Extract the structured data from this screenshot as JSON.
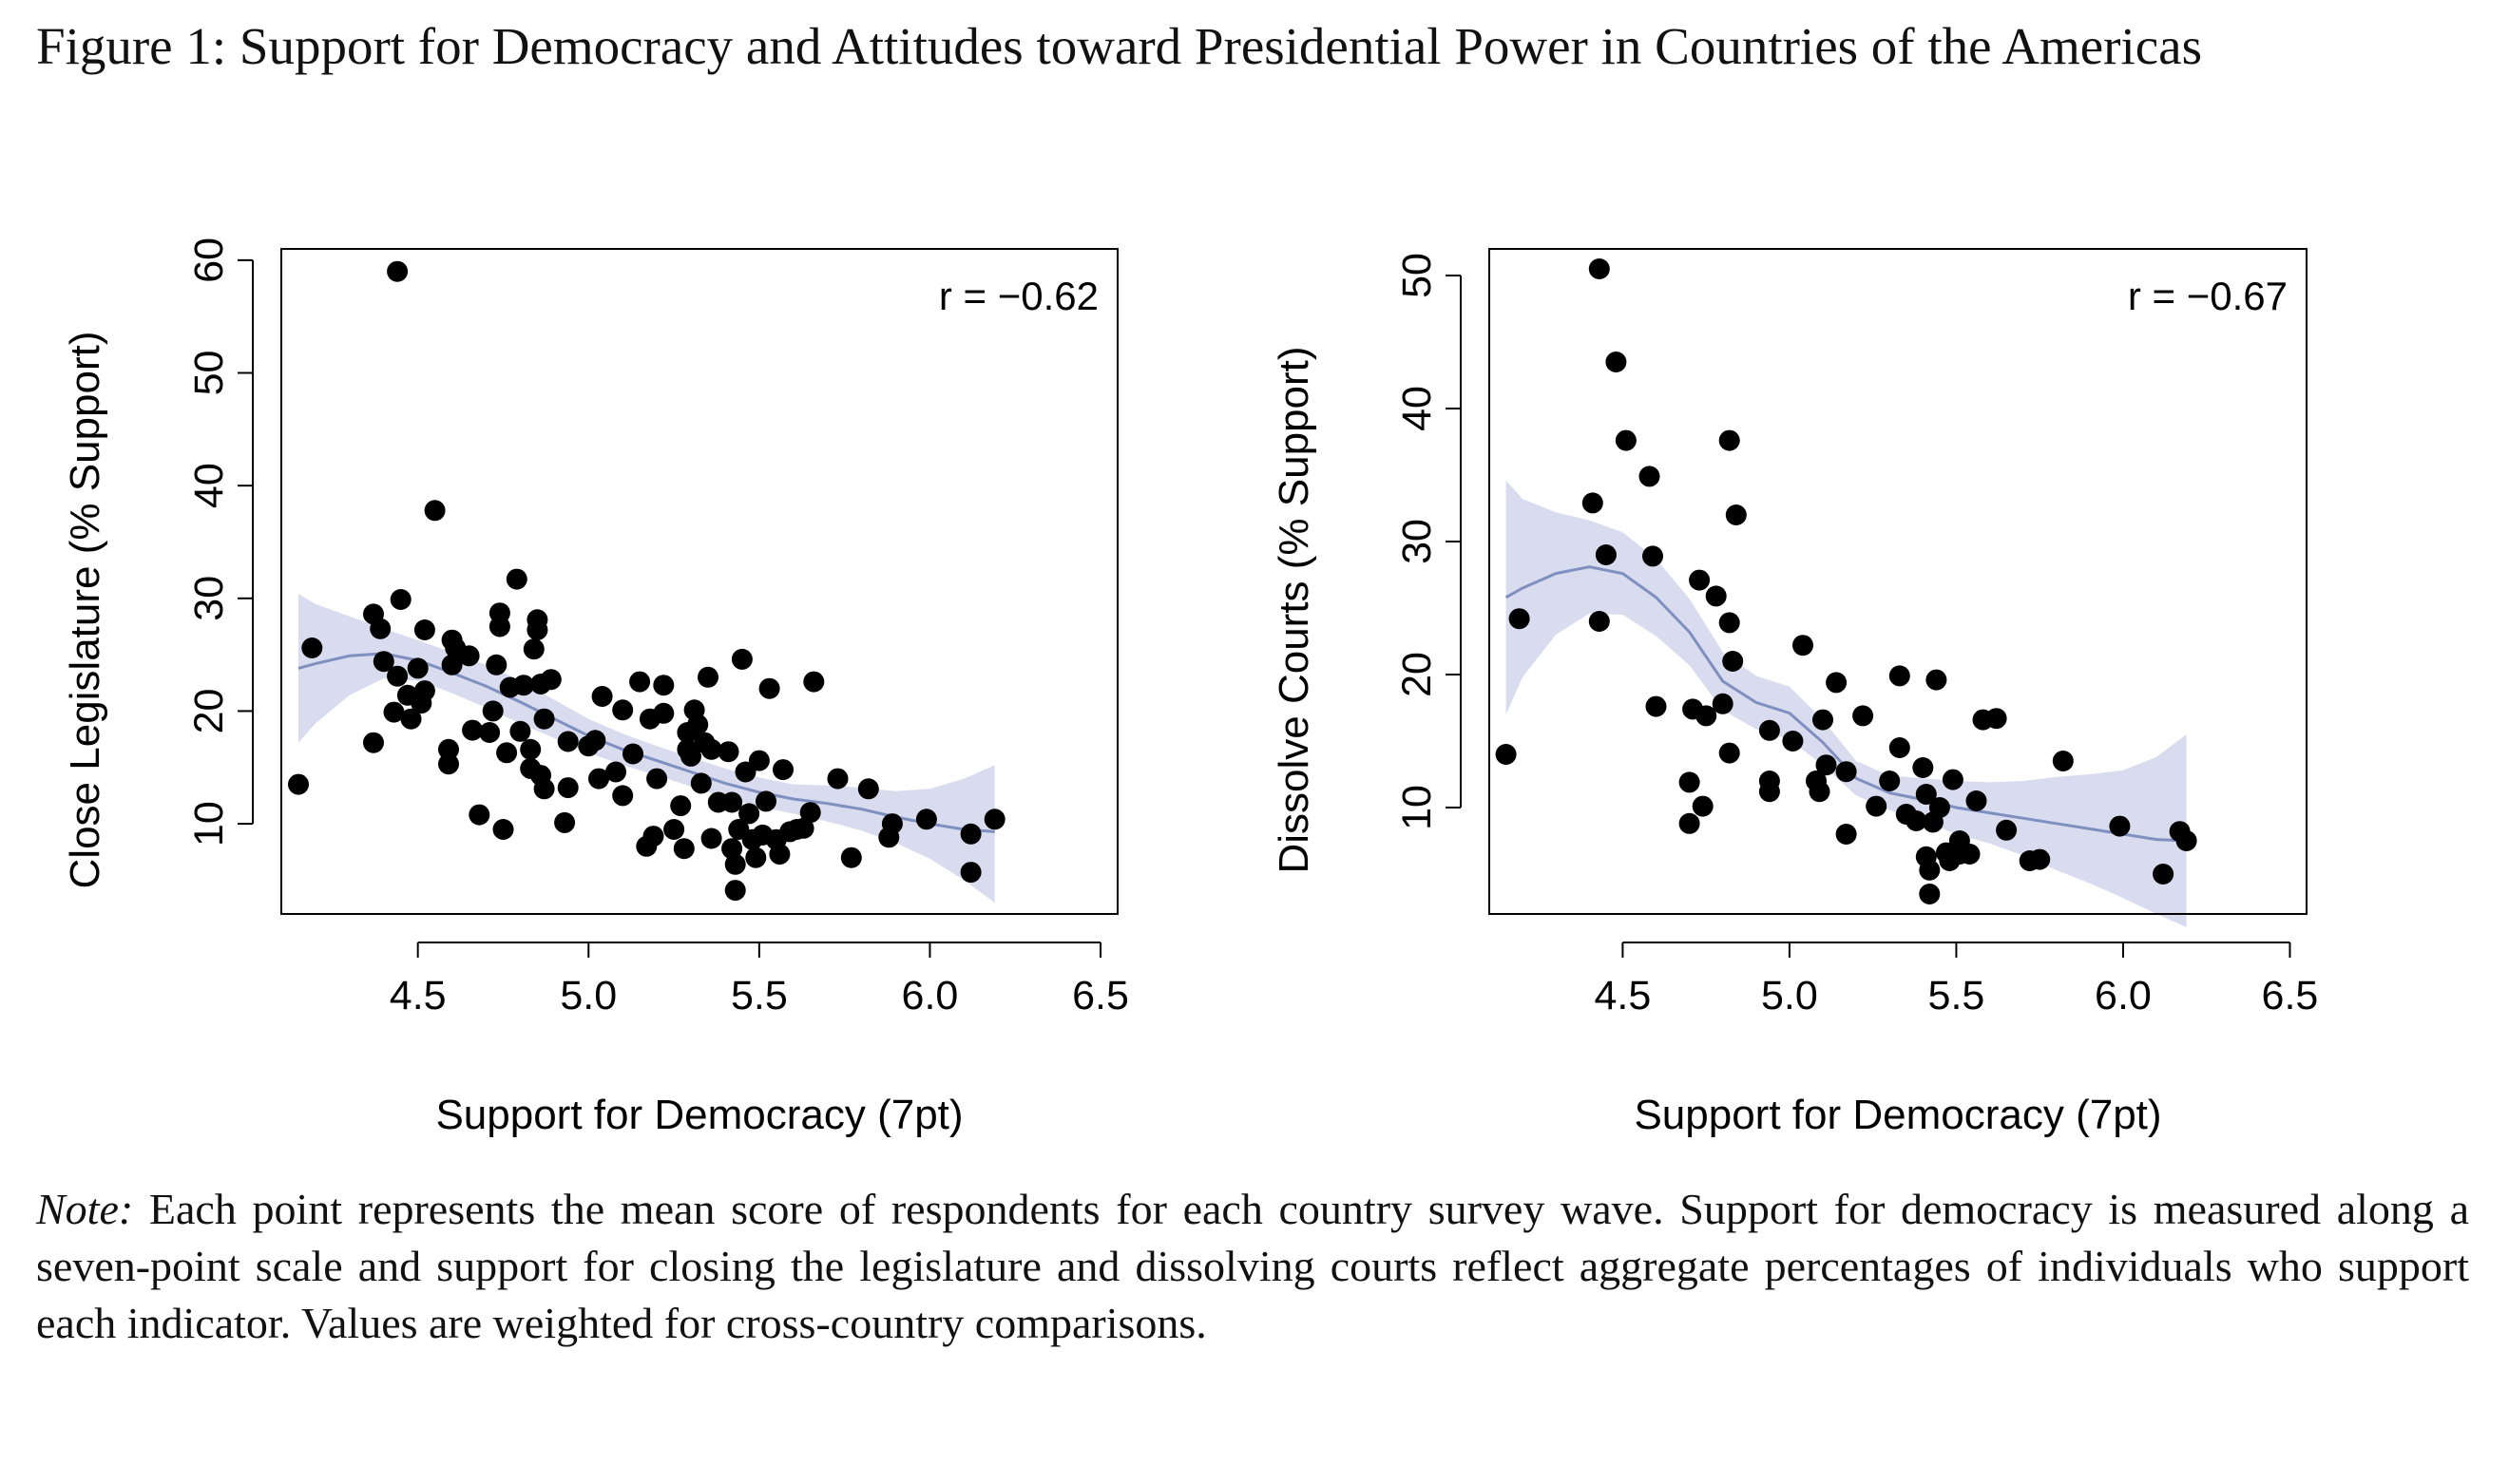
{
  "figure": {
    "title": "Figure 1: Support for Democracy and Attitudes toward Presidential Power in Countries of the Americas",
    "note_label": "Note:",
    "note_text": "Each point represents the mean score of respondents for each country survey wave. Support for democracy is measured along a seven-point scale and support for closing the legislature and dissolving courts reflect aggregate percentages of individuals who support each indicator. Values are weighted for cross-country comparisons."
  },
  "colors": {
    "points": "#000000",
    "smoother_line": "#7f8fc0",
    "confidence_band": "#d9dcee"
  },
  "chart_data": [
    {
      "type": "scatter",
      "xlabel": "Support for Democracy (7pt)",
      "ylabel": "Close Legislature (% Support)",
      "annotation": "r = −0.62",
      "xlim": [
        4.1,
        6.55
      ],
      "ylim": [
        2,
        61
      ],
      "xticks": [
        4.5,
        5.0,
        5.5,
        6.0,
        6.5
      ],
      "xtick_labels": [
        "4.5",
        "5.0",
        "5.5",
        "6.0",
        "6.5"
      ],
      "yticks": [
        10,
        20,
        30,
        40,
        50,
        60
      ],
      "ytick_labels": [
        "10",
        "20",
        "30",
        "40",
        "50",
        "60"
      ],
      "points": [
        [
          4.15,
          13.5
        ],
        [
          4.19,
          25.6
        ],
        [
          4.37,
          28.6
        ],
        [
          4.37,
          17.2
        ],
        [
          4.39,
          27.3
        ],
        [
          4.4,
          24.4
        ],
        [
          4.43,
          19.9
        ],
        [
          4.44,
          23.1
        ],
        [
          4.45,
          29.9
        ],
        [
          4.44,
          59.0
        ],
        [
          4.47,
          21.4
        ],
        [
          4.48,
          19.3
        ],
        [
          4.5,
          23.8
        ],
        [
          4.51,
          20.7
        ],
        [
          4.52,
          21.8
        ],
        [
          4.52,
          27.2
        ],
        [
          4.55,
          37.8
        ],
        [
          4.59,
          15.3
        ],
        [
          4.59,
          16.6
        ],
        [
          4.6,
          24.1
        ],
        [
          4.6,
          26.3
        ],
        [
          4.61,
          25.6
        ],
        [
          4.65,
          24.9
        ],
        [
          4.66,
          18.3
        ],
        [
          4.68,
          10.8
        ],
        [
          4.71,
          18.1
        ],
        [
          4.72,
          20.0
        ],
        [
          4.73,
          24.1
        ],
        [
          4.74,
          27.5
        ],
        [
          4.74,
          28.7
        ],
        [
          4.75,
          9.5
        ],
        [
          4.76,
          16.3
        ],
        [
          4.77,
          22.1
        ],
        [
          4.79,
          31.7
        ],
        [
          4.8,
          18.2
        ],
        [
          4.81,
          22.3
        ],
        [
          4.83,
          16.6
        ],
        [
          4.83,
          14.9
        ],
        [
          4.84,
          25.5
        ],
        [
          4.85,
          28.1
        ],
        [
          4.85,
          27.2
        ],
        [
          4.86,
          14.3
        ],
        [
          4.86,
          22.4
        ],
        [
          4.87,
          13.1
        ],
        [
          4.87,
          19.3
        ],
        [
          4.89,
          22.8
        ],
        [
          4.93,
          10.1
        ],
        [
          4.94,
          13.2
        ],
        [
          4.94,
          17.3
        ],
        [
          5.0,
          16.9
        ],
        [
          5.02,
          17.4
        ],
        [
          5.03,
          14.0
        ],
        [
          5.04,
          21.3
        ],
        [
          5.08,
          14.6
        ],
        [
          5.1,
          12.5
        ],
        [
          5.1,
          20.1
        ],
        [
          5.13,
          16.2
        ],
        [
          5.15,
          22.6
        ],
        [
          5.17,
          8.0
        ],
        [
          5.18,
          19.3
        ],
        [
          5.19,
          8.9
        ],
        [
          5.2,
          14.0
        ],
        [
          5.22,
          19.8
        ],
        [
          5.22,
          22.3
        ],
        [
          5.25,
          9.5
        ],
        [
          5.27,
          11.6
        ],
        [
          5.28,
          7.8
        ],
        [
          5.29,
          16.6
        ],
        [
          5.29,
          18.1
        ],
        [
          5.3,
          16.0
        ],
        [
          5.31,
          20.1
        ],
        [
          5.32,
          18.8
        ],
        [
          5.33,
          13.6
        ],
        [
          5.34,
          17.2
        ],
        [
          5.35,
          23.0
        ],
        [
          5.36,
          16.6
        ],
        [
          5.36,
          8.7
        ],
        [
          5.38,
          11.9
        ],
        [
          5.41,
          16.4
        ],
        [
          5.42,
          11.9
        ],
        [
          5.42,
          7.8
        ],
        [
          5.43,
          4.1
        ],
        [
          5.43,
          6.4
        ],
        [
          5.44,
          9.5
        ],
        [
          5.45,
          24.6
        ],
        [
          5.46,
          14.6
        ],
        [
          5.47,
          10.9
        ],
        [
          5.48,
          8.6
        ],
        [
          5.49,
          7.0
        ],
        [
          5.5,
          15.6
        ],
        [
          5.51,
          9.0
        ],
        [
          5.52,
          12.0
        ],
        [
          5.53,
          22.0
        ],
        [
          5.55,
          8.6
        ],
        [
          5.56,
          7.3
        ],
        [
          5.57,
          14.8
        ],
        [
          5.59,
          9.3
        ],
        [
          5.61,
          9.5
        ],
        [
          5.63,
          9.6
        ],
        [
          5.65,
          11.0
        ],
        [
          5.66,
          22.6
        ],
        [
          5.73,
          14.0
        ],
        [
          5.77,
          7.0
        ],
        [
          5.82,
          13.1
        ],
        [
          5.88,
          8.8
        ],
        [
          5.89,
          10.0
        ],
        [
          5.99,
          10.4
        ],
        [
          6.12,
          9.1
        ],
        [
          6.12,
          5.7
        ],
        [
          6.19,
          10.4
        ]
      ],
      "smoother": {
        "x": [
          4.15,
          4.2,
          4.3,
          4.4,
          4.5,
          4.6,
          4.7,
          4.8,
          4.9,
          5.0,
          5.1,
          5.2,
          5.3,
          5.4,
          5.5,
          5.6,
          5.7,
          5.8,
          5.9,
          6.0,
          6.1,
          6.19
        ],
        "y": [
          23.8,
          24.2,
          24.9,
          25.1,
          24.5,
          23.4,
          22.2,
          20.8,
          19.3,
          17.8,
          16.6,
          15.6,
          14.6,
          13.6,
          12.8,
          12.2,
          11.8,
          11.3,
          10.6,
          10.0,
          9.5,
          9.3
        ],
        "lower": [
          17.2,
          18.9,
          21.4,
          22.9,
          22.7,
          21.6,
          20.3,
          18.9,
          17.6,
          16.3,
          15.2,
          14.3,
          13.3,
          12.3,
          11.5,
          10.9,
          10.2,
          9.4,
          8.3,
          6.9,
          5.0,
          3.0
        ],
        "upper": [
          30.4,
          29.5,
          28.4,
          27.3,
          26.3,
          25.2,
          24.1,
          22.7,
          21.0,
          19.3,
          18.0,
          16.9,
          15.9,
          14.9,
          14.1,
          13.5,
          13.4,
          13.2,
          12.9,
          13.1,
          14.0,
          15.2
        ]
      }
    },
    {
      "type": "scatter",
      "xlabel": "Support for Democracy (7pt)",
      "ylabel": "Dissolve Courts (% Support)",
      "annotation": "r = −0.67",
      "xlim": [
        4.1,
        6.55
      ],
      "ylim": [
        2,
        52
      ],
      "xticks": [
        4.5,
        5.0,
        5.5,
        6.0,
        6.5
      ],
      "xtick_labels": [
        "4.5",
        "5.0",
        "5.5",
        "6.0",
        "6.5"
      ],
      "yticks": [
        10,
        20,
        30,
        40,
        50
      ],
      "ytick_labels": [
        "10",
        "20",
        "30",
        "40",
        "50"
      ],
      "points": [
        [
          4.15,
          14.0
        ],
        [
          4.19,
          24.2
        ],
        [
          4.41,
          32.9
        ],
        [
          4.43,
          24.0
        ],
        [
          4.43,
          50.5
        ],
        [
          4.45,
          29.0
        ],
        [
          4.48,
          43.5
        ],
        [
          4.51,
          37.6
        ],
        [
          4.58,
          34.9
        ],
        [
          4.59,
          28.9
        ],
        [
          4.6,
          17.6
        ],
        [
          4.7,
          8.8
        ],
        [
          4.7,
          11.9
        ],
        [
          4.71,
          17.4
        ],
        [
          4.73,
          27.1
        ],
        [
          4.74,
          10.1
        ],
        [
          4.75,
          16.9
        ],
        [
          4.78,
          25.9
        ],
        [
          4.8,
          17.8
        ],
        [
          4.82,
          23.9
        ],
        [
          4.82,
          37.6
        ],
        [
          4.82,
          14.1
        ],
        [
          4.83,
          21.0
        ],
        [
          4.84,
          32.0
        ],
        [
          4.94,
          15.8
        ],
        [
          4.94,
          12.0
        ],
        [
          4.94,
          11.2
        ],
        [
          5.01,
          15.0
        ],
        [
          5.04,
          22.2
        ],
        [
          5.08,
          12.0
        ],
        [
          5.09,
          11.2
        ],
        [
          5.1,
          16.6
        ],
        [
          5.11,
          13.2
        ],
        [
          5.14,
          19.4
        ],
        [
          5.17,
          8.0
        ],
        [
          5.17,
          12.7
        ],
        [
          5.22,
          16.9
        ],
        [
          5.26,
          10.1
        ],
        [
          5.3,
          12.0
        ],
        [
          5.33,
          14.5
        ],
        [
          5.33,
          19.9
        ],
        [
          5.35,
          9.5
        ],
        [
          5.38,
          9.0
        ],
        [
          5.4,
          13.0
        ],
        [
          5.41,
          11.0
        ],
        [
          5.41,
          6.3
        ],
        [
          5.42,
          3.5
        ],
        [
          5.42,
          5.3
        ],
        [
          5.43,
          8.9
        ],
        [
          5.44,
          19.6
        ],
        [
          5.45,
          10.0
        ],
        [
          5.47,
          6.6
        ],
        [
          5.48,
          6.0
        ],
        [
          5.49,
          12.1
        ],
        [
          5.51,
          6.5
        ],
        [
          5.51,
          7.5
        ],
        [
          5.54,
          6.5
        ],
        [
          5.56,
          10.5
        ],
        [
          5.58,
          16.6
        ],
        [
          5.62,
          16.7
        ],
        [
          5.65,
          8.3
        ],
        [
          5.72,
          6.0
        ],
        [
          5.75,
          6.1
        ],
        [
          5.82,
          13.5
        ],
        [
          5.99,
          8.6
        ],
        [
          6.12,
          5.0
        ],
        [
          6.17,
          8.2
        ],
        [
          6.19,
          7.5
        ]
      ],
      "smoother": {
        "x": [
          4.15,
          4.2,
          4.3,
          4.4,
          4.5,
          4.6,
          4.7,
          4.8,
          4.9,
          5.0,
          5.1,
          5.2,
          5.3,
          5.4,
          5.5,
          5.6,
          5.7,
          5.8,
          5.9,
          6.0,
          6.1,
          6.19
        ],
        "y": [
          25.8,
          26.5,
          27.6,
          28.1,
          27.6,
          25.8,
          23.2,
          19.5,
          17.9,
          17.1,
          14.9,
          12.2,
          11.1,
          10.6,
          10.0,
          9.6,
          9.2,
          8.8,
          8.4,
          8.0,
          7.6,
          7.5
        ],
        "lower": [
          17.0,
          19.8,
          23.0,
          24.6,
          24.5,
          22.9,
          20.7,
          17.3,
          15.9,
          15.1,
          13.2,
          10.9,
          9.8,
          9.0,
          8.0,
          7.3,
          6.4,
          5.3,
          4.3,
          3.2,
          2.0,
          1.0
        ],
        "upper": [
          34.6,
          33.2,
          32.2,
          31.6,
          30.7,
          28.7,
          25.7,
          21.7,
          19.9,
          19.1,
          16.6,
          13.5,
          12.4,
          12.2,
          12.0,
          11.9,
          12.0,
          12.3,
          12.5,
          12.8,
          13.8,
          15.5
        ]
      }
    }
  ]
}
